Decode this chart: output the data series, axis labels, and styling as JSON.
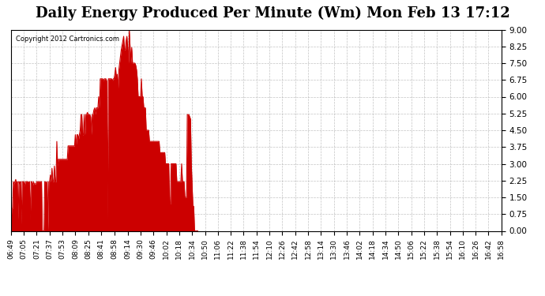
{
  "title": "Daily Energy Produced Per Minute (Wm) Mon Feb 13 17:12",
  "copyright": "Copyright 2012 Cartronics.com",
  "title_fontsize": 13,
  "line_color": "#cc0000",
  "background_color": "#ffffff",
  "grid_color": "#aaaaaa",
  "ylim": [
    0,
    9.0
  ],
  "yticks": [
    0.0,
    0.75,
    1.5,
    2.25,
    3.0,
    3.75,
    4.5,
    5.25,
    6.0,
    6.75,
    7.5,
    8.25,
    9.0
  ],
  "xtick_labels": [
    "06:49",
    "07:05",
    "07:21",
    "07:37",
    "07:53",
    "08:09",
    "08:25",
    "08:41",
    "08:58",
    "09:14",
    "09:30",
    "09:46",
    "10:02",
    "10:18",
    "10:34",
    "10:50",
    "11:06",
    "11:22",
    "11:38",
    "11:54",
    "12:10",
    "12:26",
    "12:42",
    "12:58",
    "13:14",
    "13:30",
    "13:46",
    "14:02",
    "14:18",
    "14:34",
    "14:50",
    "15:06",
    "15:22",
    "15:38",
    "15:54",
    "16:10",
    "16:26",
    "16:42",
    "16:58"
  ],
  "time_minutes": [
    0,
    1,
    2,
    3,
    4,
    5,
    6,
    7,
    8,
    9,
    10,
    11,
    12,
    13,
    14,
    15,
    16,
    17,
    18,
    19,
    20,
    21,
    22,
    23,
    24,
    25,
    26,
    27,
    28,
    29,
    30,
    31,
    32,
    33,
    34,
    35,
    36,
    37,
    38,
    39,
    40,
    41,
    42,
    43,
    44,
    45,
    46,
    47,
    48,
    49,
    50,
    51,
    52,
    53,
    54,
    55,
    56,
    57,
    58,
    59,
    60,
    61,
    62,
    63,
    64,
    65,
    66,
    67,
    68,
    69,
    70,
    71,
    72,
    73,
    74,
    75,
    76,
    77,
    78,
    79,
    80,
    81,
    82,
    83,
    84,
    85,
    86,
    87,
    88,
    89,
    90,
    91,
    92,
    93,
    94,
    95,
    96,
    97,
    98,
    99,
    100,
    101,
    102,
    103,
    104,
    105,
    106,
    107,
    108,
    109,
    110,
    111,
    112,
    113,
    114,
    115,
    116,
    117,
    118,
    119,
    120,
    121,
    122,
    123,
    124,
    125,
    126,
    127,
    128,
    129,
    130,
    131,
    132,
    133,
    134,
    135,
    136,
    137,
    138,
    139,
    140,
    141,
    142,
    143,
    144,
    145,
    146,
    147,
    148,
    149,
    150,
    151,
    152,
    153,
    154,
    155,
    156,
    157,
    158,
    159,
    160,
    161,
    162,
    163,
    164,
    165,
    166,
    167,
    168,
    169,
    170,
    171,
    172,
    173,
    174,
    175,
    176,
    177,
    178,
    179,
    180,
    181,
    182,
    183,
    184,
    185,
    186,
    187,
    188,
    189,
    190,
    191,
    192,
    193,
    194,
    195,
    196,
    197,
    198,
    199,
    200,
    201,
    202,
    203,
    204,
    205,
    206,
    207,
    208,
    209,
    210,
    211,
    212,
    213,
    214,
    215,
    216,
    217,
    218,
    219,
    220,
    221,
    222,
    223,
    224,
    225,
    226,
    227,
    228,
    229,
    230
  ],
  "values": [
    0.0,
    1.0,
    1.0,
    2.2,
    2.1,
    2.2,
    2.3,
    2.1,
    2.2,
    0.5,
    2.2,
    2.1,
    2.2,
    0.3,
    2.2,
    2.2,
    2.2,
    2.0,
    2.2,
    2.2,
    2.2,
    2.2,
    2.1,
    2.2,
    0.5,
    2.2,
    2.2,
    2.0,
    2.2,
    2.1,
    2.1,
    2.1,
    2.2,
    2.2,
    2.2,
    2.2,
    2.2,
    2.2,
    2.2,
    0.0,
    0.0,
    0.0,
    2.2,
    2.2,
    2.1,
    2.2,
    0.0,
    2.2,
    2.2,
    2.5,
    2.2,
    2.8,
    2.2,
    2.2,
    2.9,
    2.2,
    2.2,
    4.0,
    2.9,
    3.2,
    3.2,
    3.2,
    3.2,
    3.2,
    3.2,
    3.2,
    3.2,
    3.2,
    3.2,
    3.2,
    3.2,
    3.8,
    3.8,
    3.8,
    3.8,
    3.8,
    3.8,
    3.8,
    3.8,
    3.8,
    4.3,
    3.8,
    4.3,
    4.3,
    4.1,
    4.3,
    4.5,
    5.2,
    5.2,
    4.3,
    4.3,
    5.2,
    4.3,
    5.2,
    5.2,
    5.3,
    5.2,
    5.2,
    5.2,
    5.1,
    4.3,
    5.2,
    5.2,
    5.4,
    5.5,
    5.2,
    5.5,
    5.5,
    5.5,
    6.0,
    5.5,
    6.8,
    6.8,
    6.8,
    6.8,
    6.7,
    6.8,
    6.8,
    6.8,
    6.7,
    0.5,
    6.8,
    6.8,
    6.8,
    6.8,
    6.8,
    6.7,
    6.8,
    6.8,
    7.0,
    7.3,
    6.8,
    7.0,
    6.3,
    7.2,
    7.5,
    7.8,
    8.1,
    8.3,
    8.5,
    8.7,
    8.1,
    8.1,
    8.5,
    8.7,
    8.2,
    7.5,
    9.0,
    8.2,
    7.5,
    8.2,
    7.5,
    7.5,
    7.5,
    7.5,
    7.4,
    7.2,
    6.8,
    6.0,
    6.0,
    6.0,
    6.0,
    6.8,
    6.0,
    6.0,
    5.5,
    5.5,
    5.5,
    4.5,
    4.5,
    4.5,
    4.5,
    4.0,
    4.0,
    4.0,
    4.0,
    4.0,
    4.0,
    4.0,
    4.0,
    4.0,
    4.0,
    4.0,
    4.0,
    4.0,
    3.5,
    3.5,
    3.5,
    3.5,
    3.5,
    3.5,
    3.5,
    3.0,
    3.0,
    3.0,
    3.0,
    3.0,
    1.2,
    1.2,
    3.0,
    3.0,
    3.0,
    3.0,
    3.0,
    3.0,
    3.0,
    2.2,
    2.2,
    2.2,
    2.2,
    2.2,
    2.2,
    3.0,
    2.2,
    2.2,
    2.2,
    1.5,
    1.5,
    1.5,
    5.2,
    5.2,
    5.2,
    5.1,
    5.0,
    3.0,
    2.0,
    1.1,
    1.1,
    0.0,
    0.0,
    0.0,
    0.0,
    0.0
  ]
}
